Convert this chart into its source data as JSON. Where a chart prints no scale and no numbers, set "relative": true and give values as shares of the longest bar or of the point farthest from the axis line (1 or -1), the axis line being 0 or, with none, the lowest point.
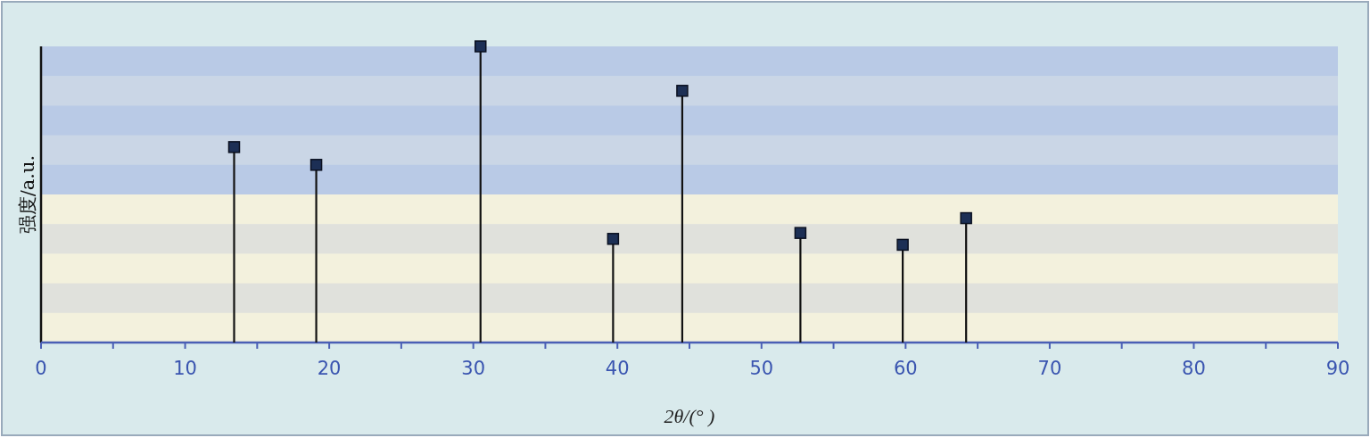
{
  "chart_data": {
    "type": "lollipop",
    "relative": true,
    "xlabel": "2θ/(° )",
    "ylabel": "强度/a.u.",
    "x": [
      13.4,
      19.1,
      30.5,
      39.7,
      44.5,
      52.7,
      59.8,
      64.2
    ],
    "values": [
      0.66,
      0.6,
      1,
      0.35,
      0.85,
      0.37,
      0.33,
      0.42
    ],
    "color": "#1c2f55",
    "marker": "square",
    "xlim": [
      0,
      90
    ],
    "xticks": [
      0,
      {
        "value": 5,
        "label": null
      },
      10,
      {
        "value": 15,
        "label": null
      },
      20,
      {
        "value": 25,
        "label": null
      },
      30,
      {
        "value": 35,
        "label": null
      },
      40,
      {
        "value": 45,
        "label": null
      },
      50,
      {
        "value": 55,
        "label": null
      },
      60,
      {
        "value": 65,
        "label": null
      },
      70,
      {
        "value": 75,
        "label": null
      },
      80,
      {
        "value": 85,
        "label": null
      },
      90
    ]
  }
}
